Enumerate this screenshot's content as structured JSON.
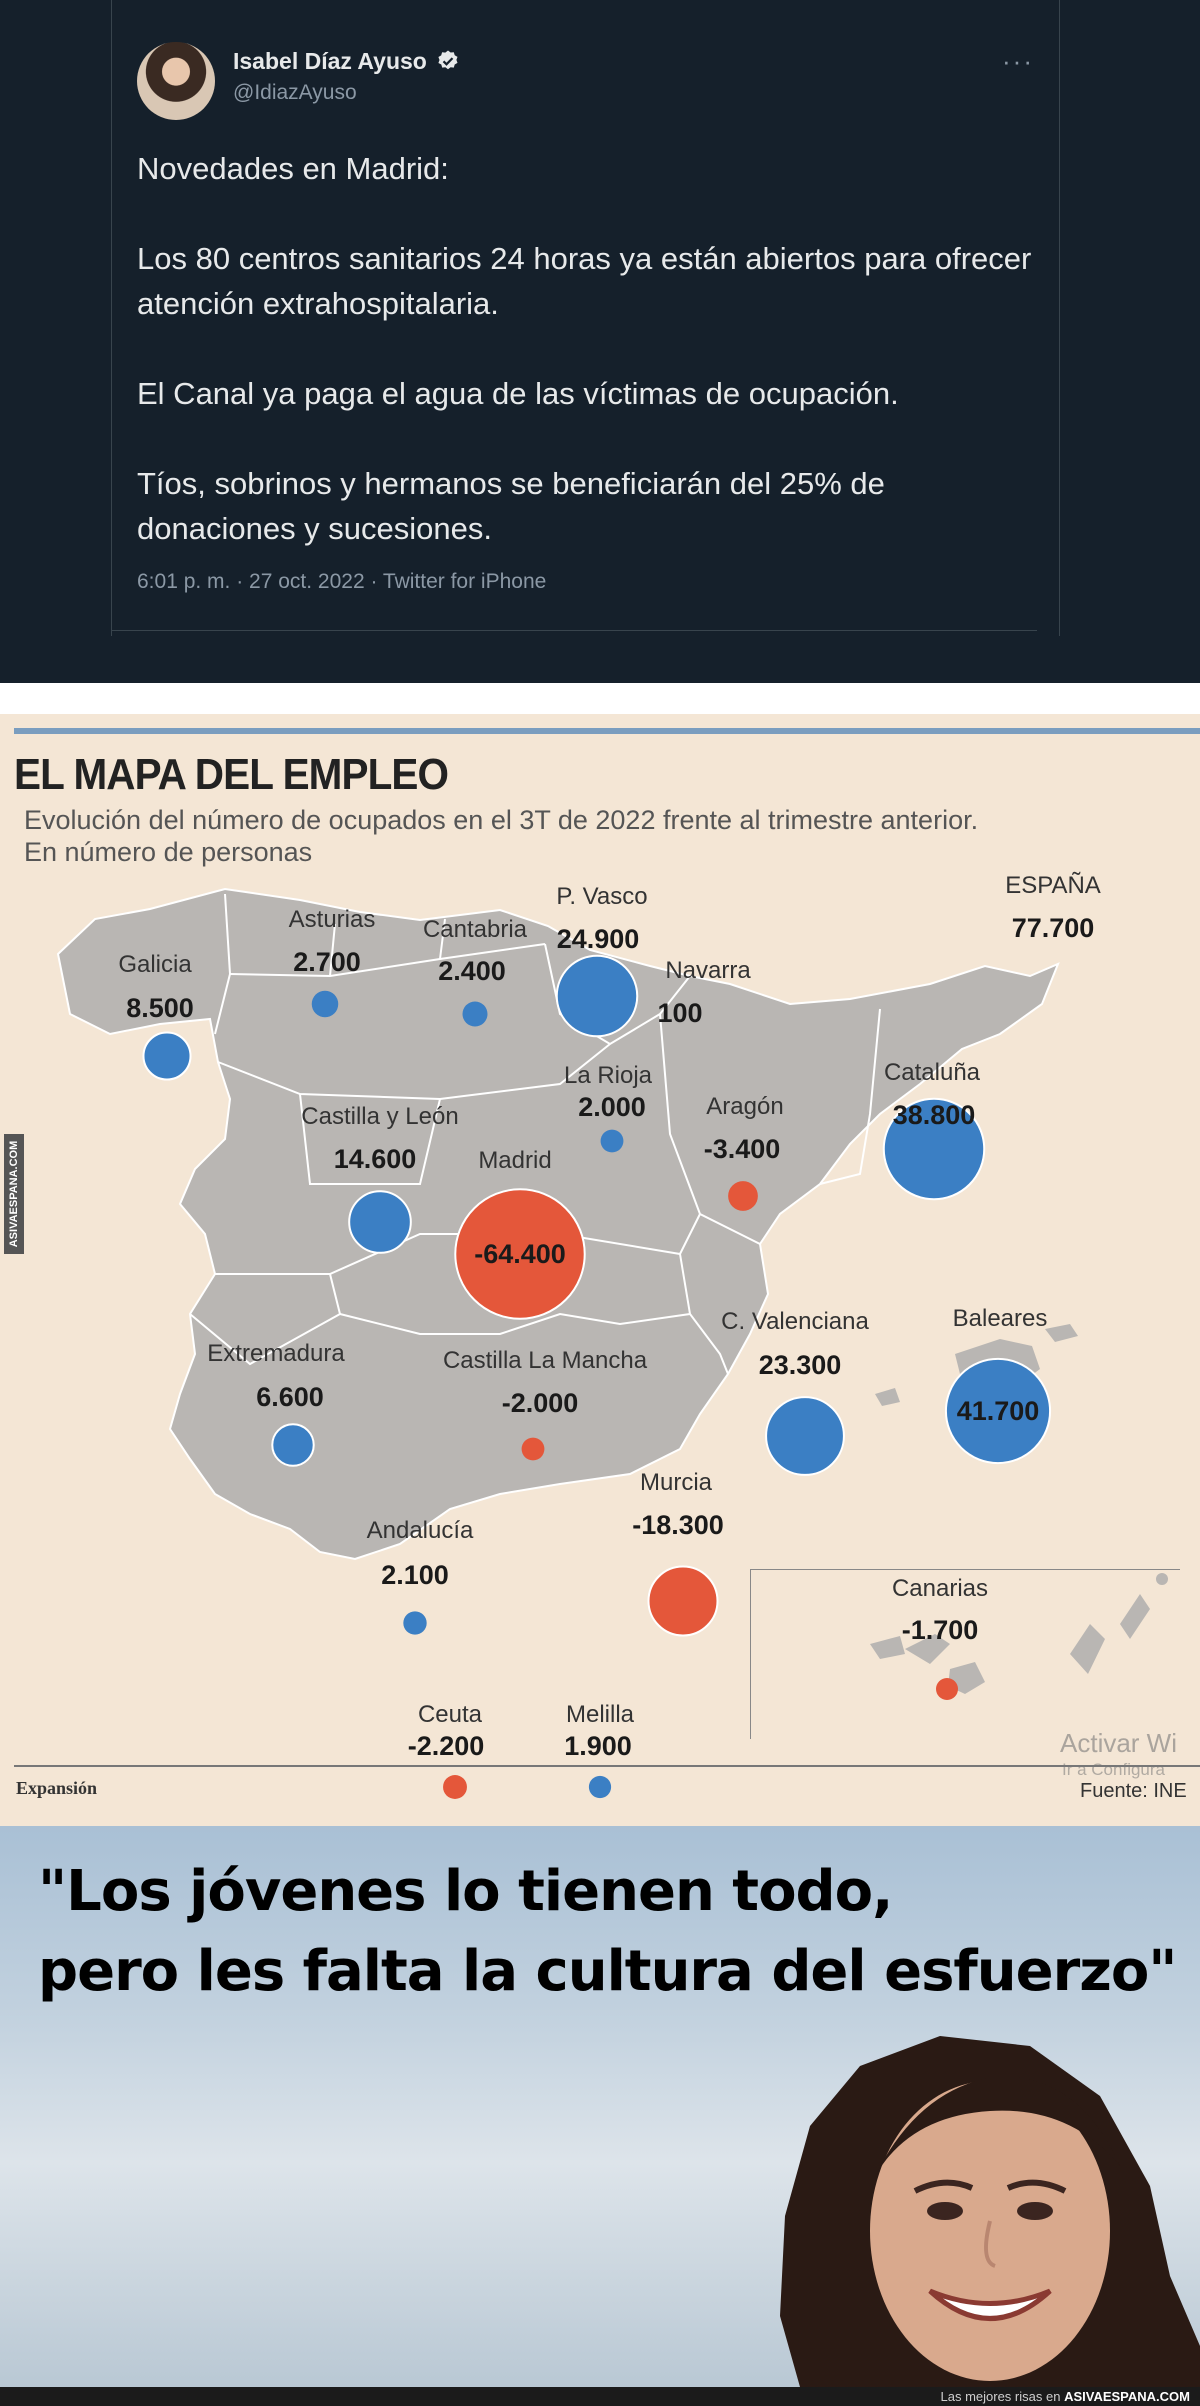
{
  "tweet": {
    "author_name": "Isabel Díaz Ayuso",
    "handle": "@IdiazAyuso",
    "paragraphs": [
      "Novedades en Madrid:",
      "Los 80 centros sanitarios 24 horas ya están abiertos para ofrecer atención extrahospitalaria.",
      "El Canal ya paga el agua de las víctimas de ocupación.",
      "Tíos, sobrinos y hermanos se beneficiarán del 25% de donaciones y sucesiones."
    ],
    "meta": "6:01 p. m. · 27 oct. 2022 · Twitter for iPhone",
    "more": "···"
  },
  "map": {
    "title": "EL MAPA DEL EMPLEO",
    "subtitle_1": "Evolución del número de ocupados en el 3T de 2022 frente al trimestre anterior.",
    "subtitle_2": "En número de personas",
    "credit_left": "Expansión",
    "credit_right": "Fuente: INE",
    "watermark": "ASIVAESPANA.COM",
    "overlay_line1": "Activar Wi",
    "overlay_line2": "Ir a Configura",
    "colors": {
      "positive": "#3b7fc4",
      "negative": "#e4573a",
      "land": "#b7b4b1",
      "background": "#f4e6d5"
    },
    "regions": [
      {
        "name": "Galicia",
        "value": "8.500",
        "num": 8500
      },
      {
        "name": "Asturias",
        "value": "2.700",
        "num": 2700
      },
      {
        "name": "Cantabria",
        "value": "2.400",
        "num": 2400
      },
      {
        "name": "P. Vasco",
        "value": "24.900",
        "num": 24900
      },
      {
        "name": "Navarra",
        "value": "100",
        "num": 100
      },
      {
        "name": "La Rioja",
        "value": "2.000",
        "num": 2000
      },
      {
        "name": "Aragón",
        "value": "-3.400",
        "num": -3400
      },
      {
        "name": "Cataluña",
        "value": "38.800",
        "num": 38800
      },
      {
        "name": "Castilla y León",
        "value": "14.600",
        "num": 14600
      },
      {
        "name": "Madrid",
        "value": "-64.400",
        "num": -64400
      },
      {
        "name": "Extremadura",
        "value": "6.600",
        "num": 6600
      },
      {
        "name": "Castilla La Mancha",
        "value": "-2.000",
        "num": -2000
      },
      {
        "name": "C. Valenciana",
        "value": "23.300",
        "num": 23300
      },
      {
        "name": "Baleares",
        "value": "41.700",
        "num": 41700
      },
      {
        "name": "Murcia",
        "value": "-18.300",
        "num": -18300
      },
      {
        "name": "Andalucía",
        "value": "2.100",
        "num": 2100
      },
      {
        "name": "Canarias",
        "value": "-1.700",
        "num": -1700
      },
      {
        "name": "Ceuta",
        "value": "-2.200",
        "num": -2200
      },
      {
        "name": "Melilla",
        "value": "1.900",
        "num": 1900
      },
      {
        "name": "ESPAÑA",
        "value": "77.700",
        "num": 77700
      }
    ]
  },
  "quote": {
    "line1": "\"Los jóvenes lo tienen todo,",
    "line2": "pero les falta la cultura del esfuerzo\""
  },
  "footer": {
    "text_prefix": "Las mejores risas en",
    "site": "ASIVAESPANA.COM"
  }
}
